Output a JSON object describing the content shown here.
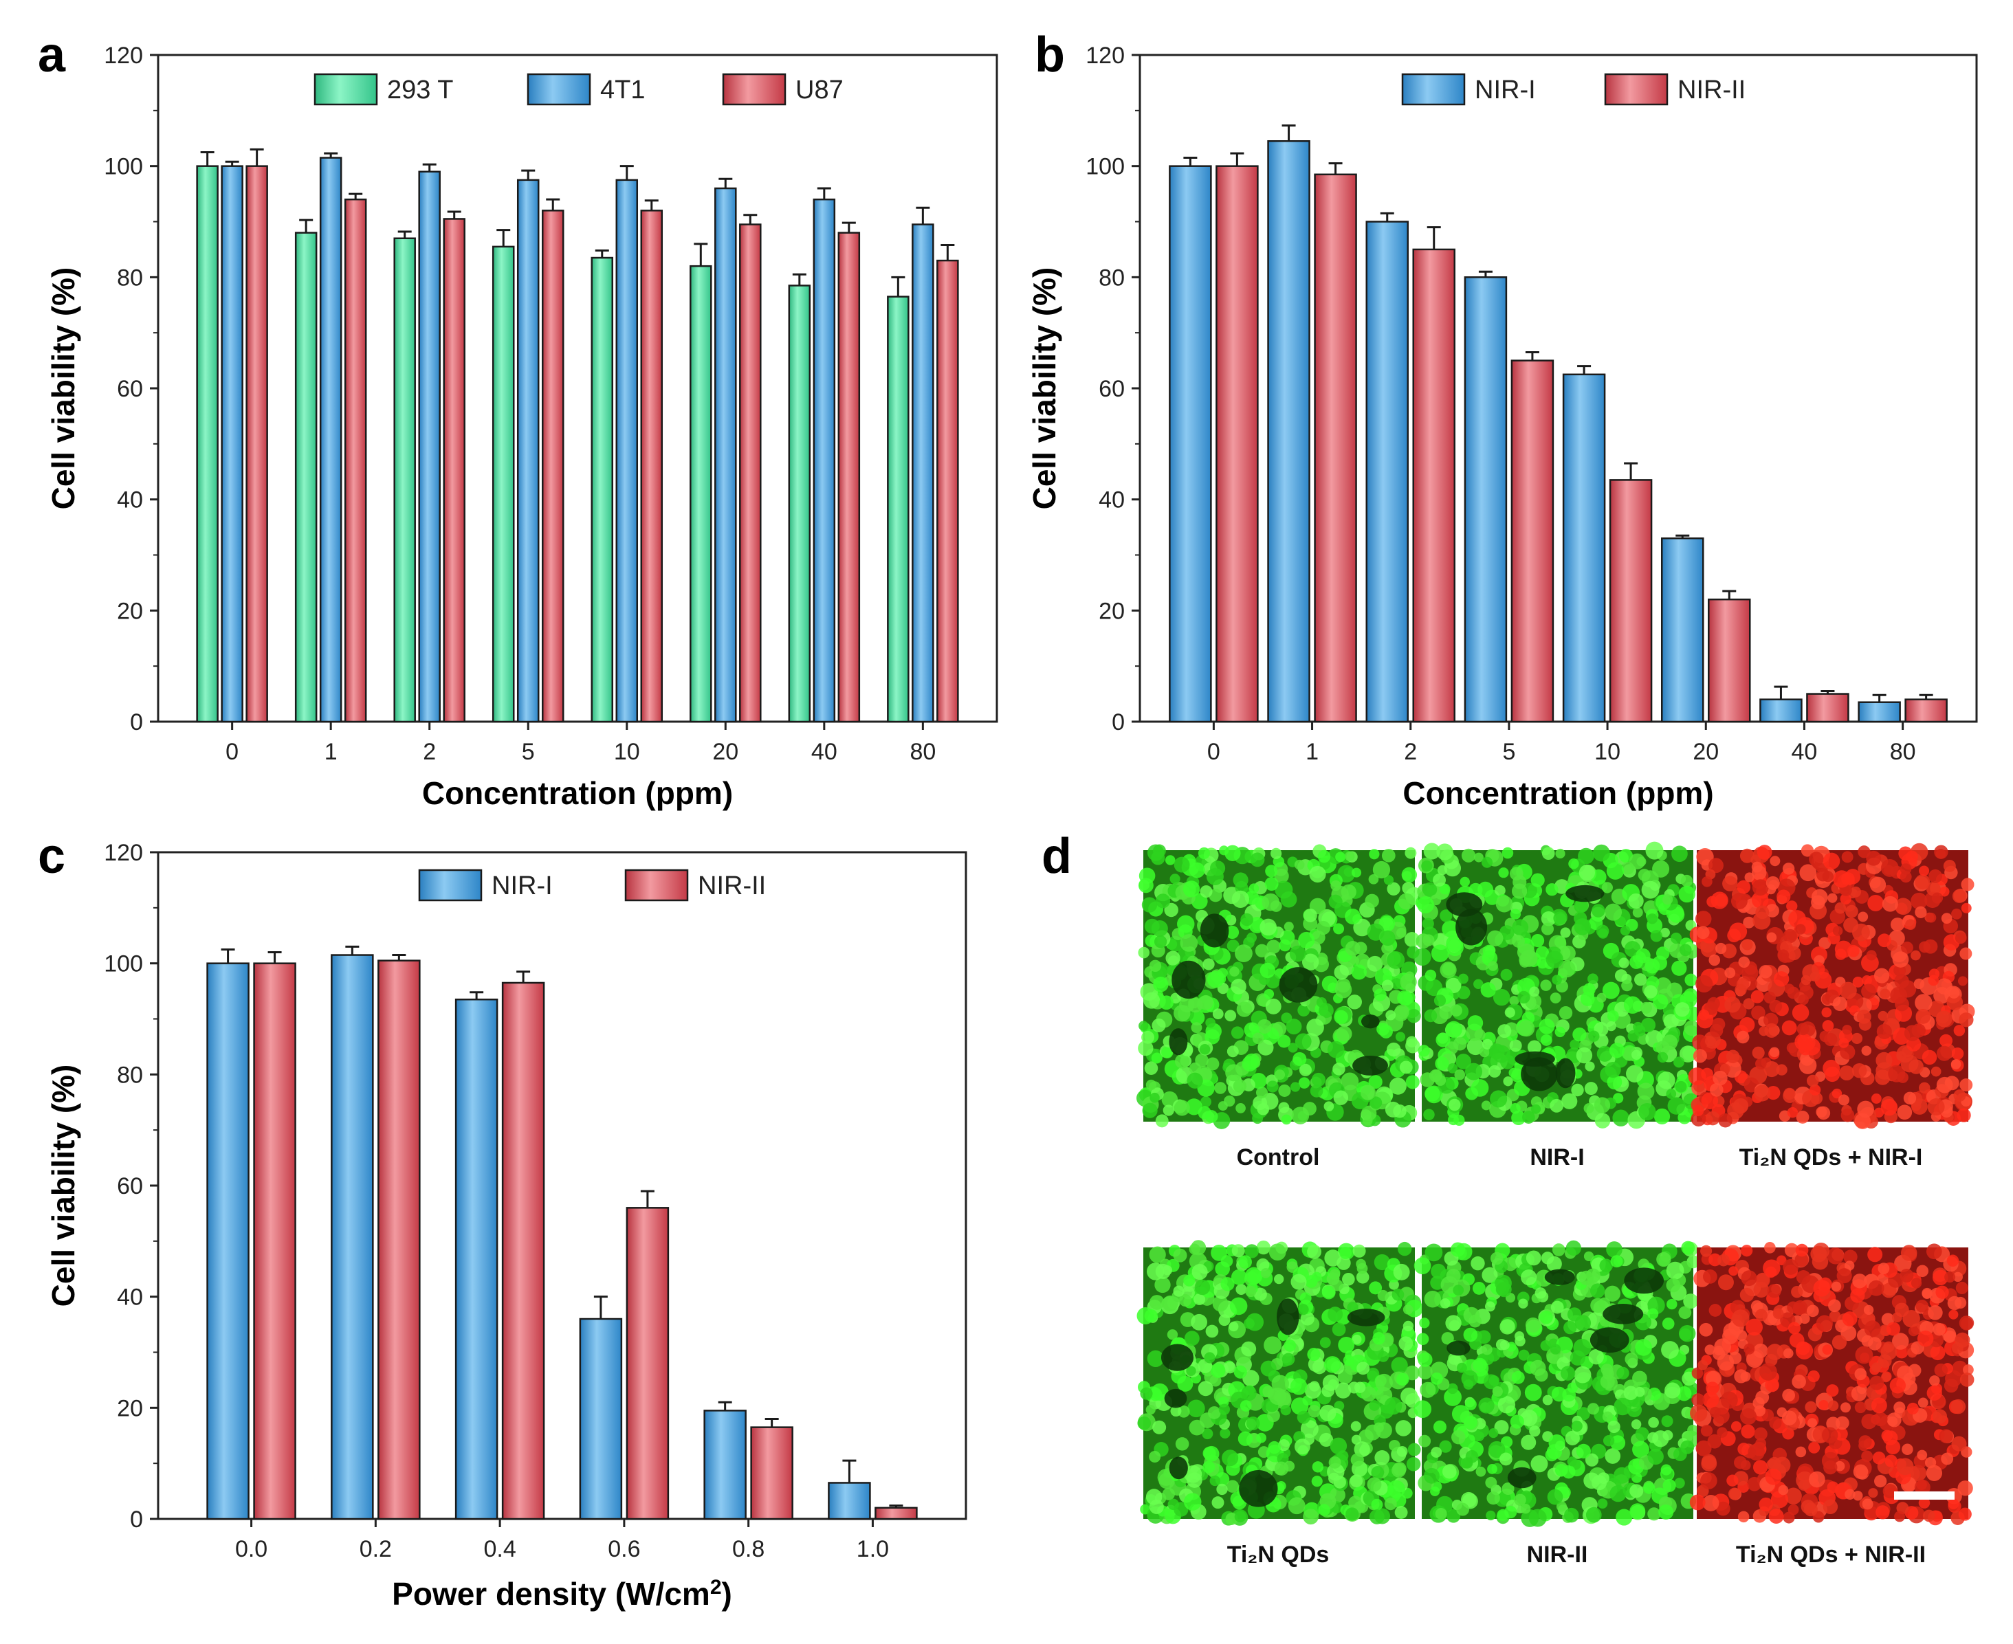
{
  "colors": {
    "green": "#4de8a4",
    "blue": "#3fa0e0",
    "red": "#e0505a",
    "axis": "#222222"
  },
  "chart_data": [
    {
      "panel": "a",
      "type": "bar",
      "title": "",
      "xlabel": "Concentration (ppm)",
      "ylabel": "Cell viability (%)",
      "categories": [
        "0",
        "1",
        "2",
        "5",
        "10",
        "20",
        "40",
        "80"
      ],
      "ylim": [
        0,
        120
      ],
      "yticks": [
        "0",
        "20",
        "40",
        "60",
        "80",
        "100",
        "120"
      ],
      "legend_position": "top-center",
      "series": [
        {
          "name": "293 T",
          "color": "green",
          "values": [
            100,
            88,
            87,
            85.5,
            83.5,
            82,
            78.5,
            76.5
          ],
          "errors": [
            2.5,
            2.3,
            1.2,
            3.0,
            1.3,
            4.0,
            2.0,
            3.5
          ]
        },
        {
          "name": "4T1",
          "color": "blue",
          "values": [
            100,
            101.5,
            99,
            97.5,
            97.5,
            96,
            94,
            89.5
          ],
          "errors": [
            0.8,
            0.8,
            1.3,
            1.7,
            2.5,
            1.7,
            2.0,
            3.0
          ]
        },
        {
          "name": "U87",
          "color": "red",
          "values": [
            100,
            94,
            90.5,
            92,
            92,
            89.5,
            88,
            83
          ],
          "errors": [
            3.0,
            1.0,
            1.3,
            2.0,
            1.8,
            1.7,
            1.8,
            2.8
          ]
        }
      ]
    },
    {
      "panel": "b",
      "type": "bar",
      "title": "",
      "xlabel": "Concentration (ppm)",
      "ylabel": "Cell viability (%)",
      "categories": [
        "0",
        "1",
        "2",
        "5",
        "10",
        "20",
        "40",
        "80"
      ],
      "ylim": [
        0,
        120
      ],
      "yticks": [
        "0",
        "20",
        "40",
        "60",
        "80",
        "100",
        "120"
      ],
      "legend_position": "top-center",
      "series": [
        {
          "name": "NIR-I",
          "color": "blue",
          "values": [
            100,
            104.5,
            90,
            80,
            62.5,
            33,
            4,
            3.5
          ],
          "errors": [
            1.5,
            2.8,
            1.5,
            1.0,
            1.5,
            0.5,
            2.3,
            1.3
          ]
        },
        {
          "name": "NIR-II",
          "color": "red",
          "values": [
            100,
            98.5,
            85,
            65,
            43.5,
            22,
            5,
            4
          ],
          "errors": [
            2.3,
            2.0,
            4.0,
            1.5,
            3.0,
            1.5,
            0.5,
            0.8
          ]
        }
      ]
    },
    {
      "panel": "c",
      "type": "bar",
      "title": "",
      "xlabel": "Power density (W/cm",
      "xlabel_sup": "2",
      "xlabel_end": ")",
      "ylabel": "Cell viability (%)",
      "categories": [
        "0.0",
        "0.2",
        "0.4",
        "0.6",
        "0.8",
        "1.0"
      ],
      "ylim": [
        0,
        120
      ],
      "yticks": [
        "0",
        "20",
        "40",
        "60",
        "80",
        "100",
        "120"
      ],
      "legend_position": "top-center",
      "series": [
        {
          "name": "NIR-I",
          "color": "blue",
          "values": [
            100,
            101.5,
            93.5,
            36,
            19.5,
            6.5
          ],
          "errors": [
            2.5,
            1.5,
            1.3,
            4.0,
            1.5,
            4.0
          ]
        },
        {
          "name": "NIR-II",
          "color": "red",
          "values": [
            100,
            100.5,
            96.5,
            56,
            16.5,
            2
          ],
          "errors": [
            2.0,
            1.0,
            2.0,
            3.0,
            1.5,
            0.4
          ]
        }
      ]
    }
  ],
  "panel_d": {
    "label": "d",
    "top_labels": [
      "Control",
      "NIR-I",
      "Ti₂N QDs + NIR-I"
    ],
    "bottom_labels": [
      "Ti₂N QDs",
      "NIR-II",
      "Ti₂N QDs + NIR-II"
    ],
    "top_colors": [
      "green",
      "green",
      "red"
    ],
    "bottom_colors": [
      "green",
      "green",
      "red"
    ]
  }
}
